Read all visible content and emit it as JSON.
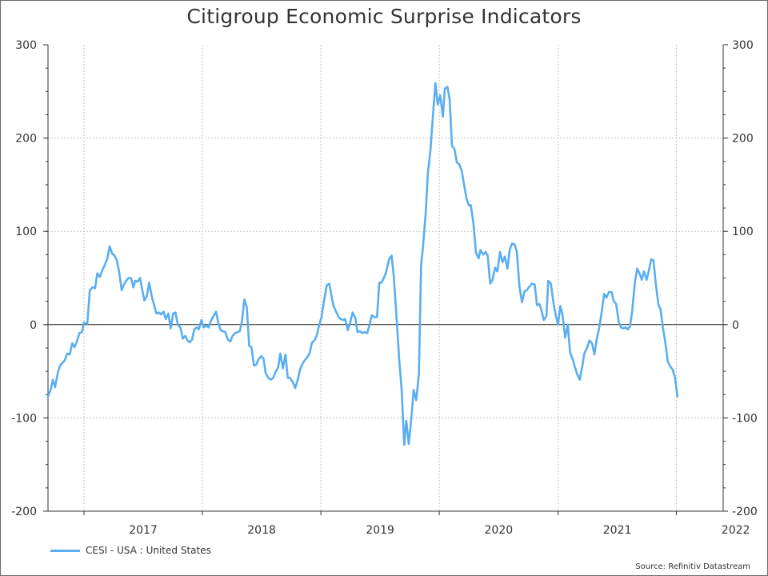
{
  "chart_data": {
    "type": "line",
    "title": "Citigroup Economic Surprise Indicators",
    "source": "Source: Refinitiv Datastream",
    "ylim": [
      -200,
      300
    ],
    "yticks": [
      -200,
      -100,
      0,
      100,
      200,
      300
    ],
    "xlim": [
      "2016-09-12",
      "2022-05-25"
    ],
    "x_tick_labels": [
      "2017",
      "2018",
      "2019",
      "2020",
      "2021",
      "2022"
    ],
    "grid": true,
    "legend_position": "bottom-left",
    "series": [
      {
        "name": "CESI - USA : United States",
        "color": "#5aaef0",
        "points": [
          [
            "2016-09-12",
            -77
          ],
          [
            "2016-09-20",
            -70
          ],
          [
            "2016-09-27",
            -59
          ],
          [
            "2016-10-04",
            -67
          ],
          [
            "2016-10-12",
            -52
          ],
          [
            "2016-10-19",
            -44
          ],
          [
            "2016-11-03",
            -38
          ],
          [
            "2016-11-10",
            -31
          ],
          [
            "2016-11-18",
            -32
          ],
          [
            "2016-11-26",
            -20
          ],
          [
            "2016-12-03",
            -24
          ],
          [
            "2016-12-10",
            -18
          ],
          [
            "2016-12-18",
            -9
          ],
          [
            "2016-12-26",
            -8
          ],
          [
            "2016-12-31",
            2
          ],
          [
            "2017-01-11",
            1
          ],
          [
            "2017-01-19",
            37
          ],
          [
            "2017-01-27",
            40
          ],
          [
            "2017-02-04",
            39
          ],
          [
            "2017-02-11",
            55
          ],
          [
            "2017-02-19",
            51
          ],
          [
            "2017-02-26",
            58
          ],
          [
            "2017-03-06",
            64
          ],
          [
            "2017-03-14",
            71
          ],
          [
            "2017-03-21",
            84
          ],
          [
            "2017-03-29",
            76
          ],
          [
            "2017-04-05",
            74
          ],
          [
            "2017-04-12",
            69
          ],
          [
            "2017-04-19",
            57
          ],
          [
            "2017-04-27",
            37
          ],
          [
            "2017-05-04",
            43
          ],
          [
            "2017-05-11",
            47
          ],
          [
            "2017-05-18",
            50
          ],
          [
            "2017-05-26",
            50
          ],
          [
            "2017-06-02",
            40
          ],
          [
            "2017-06-08",
            47
          ],
          [
            "2017-06-15",
            46
          ],
          [
            "2017-06-23",
            50
          ],
          [
            "2017-06-29",
            38
          ],
          [
            "2017-07-06",
            26
          ],
          [
            "2017-07-14",
            31
          ],
          [
            "2017-07-21",
            45
          ],
          [
            "2017-07-29",
            30
          ],
          [
            "2017-08-06",
            20
          ],
          [
            "2017-08-12",
            12
          ],
          [
            "2017-08-20",
            13
          ],
          [
            "2017-08-27",
            11
          ],
          [
            "2017-09-03",
            14
          ],
          [
            "2017-09-10",
            6
          ],
          [
            "2017-09-18",
            12
          ],
          [
            "2017-09-25",
            -4
          ],
          [
            "2017-10-03",
            12
          ],
          [
            "2017-10-10",
            13
          ],
          [
            "2017-10-17",
            0
          ],
          [
            "2017-10-25",
            -3
          ],
          [
            "2017-11-02",
            -15
          ],
          [
            "2017-11-09",
            -12
          ],
          [
            "2017-11-16",
            -17
          ],
          [
            "2017-11-23",
            -19
          ],
          [
            "2017-11-30",
            -16
          ],
          [
            "2017-12-07",
            -5
          ],
          [
            "2017-12-14",
            -3
          ],
          [
            "2017-12-21",
            -5
          ],
          [
            "2017-12-29",
            5
          ],
          [
            "2018-01-05",
            -3
          ],
          [
            "2018-01-12",
            -1
          ],
          [
            "2018-01-20",
            -3
          ],
          [
            "2018-01-27",
            4
          ],
          [
            "2018-02-04",
            9
          ],
          [
            "2018-02-12",
            14
          ],
          [
            "2018-02-19",
            2
          ],
          [
            "2018-02-26",
            -6
          ],
          [
            "2018-03-05",
            -7
          ],
          [
            "2018-03-13",
            -8
          ],
          [
            "2018-03-20",
            -16
          ],
          [
            "2018-03-28",
            -18
          ],
          [
            "2018-04-04",
            -12
          ],
          [
            "2018-04-12",
            -9
          ],
          [
            "2018-04-26",
            -7
          ],
          [
            "2018-05-03",
            4
          ],
          [
            "2018-05-10",
            27
          ],
          [
            "2018-05-18",
            18
          ],
          [
            "2018-05-25",
            -23
          ],
          [
            "2018-06-01",
            -24
          ],
          [
            "2018-06-09",
            -44
          ],
          [
            "2018-06-16",
            -43
          ],
          [
            "2018-06-23",
            -37
          ],
          [
            "2018-07-01",
            -34
          ],
          [
            "2018-07-08",
            -36
          ],
          [
            "2018-07-15",
            -52
          ],
          [
            "2018-07-23",
            -57
          ],
          [
            "2018-08-01",
            -59
          ],
          [
            "2018-08-07",
            -57
          ],
          [
            "2018-08-14",
            -51
          ],
          [
            "2018-08-22",
            -46
          ],
          [
            "2018-08-29",
            -31
          ],
          [
            "2018-09-06",
            -47
          ],
          [
            "2018-09-14",
            -32
          ],
          [
            "2018-09-21",
            -57
          ],
          [
            "2018-09-28",
            -57
          ],
          [
            "2018-10-07",
            -62
          ],
          [
            "2018-10-14",
            -68
          ],
          [
            "2018-10-21",
            -60
          ],
          [
            "2018-10-29",
            -48
          ],
          [
            "2018-11-05",
            -42
          ],
          [
            "2018-11-13",
            -38
          ],
          [
            "2018-11-20",
            -35
          ],
          [
            "2018-11-27",
            -31
          ],
          [
            "2018-12-05",
            -19
          ],
          [
            "2018-12-12",
            -17
          ],
          [
            "2018-12-19",
            -12
          ],
          [
            "2018-12-27",
            0
          ],
          [
            "2019-01-03",
            8
          ],
          [
            "2019-01-10",
            24
          ],
          [
            "2019-01-19",
            42
          ],
          [
            "2019-01-27",
            44
          ],
          [
            "2019-02-02",
            32
          ],
          [
            "2019-02-09",
            20
          ],
          [
            "2019-02-17",
            14
          ],
          [
            "2019-02-25",
            8
          ],
          [
            "2019-03-03",
            6
          ],
          [
            "2019-03-10",
            5
          ],
          [
            "2019-03-17",
            6
          ],
          [
            "2019-03-25",
            -6
          ],
          [
            "2019-04-01",
            2
          ],
          [
            "2019-04-09",
            13
          ],
          [
            "2019-04-17",
            7
          ],
          [
            "2019-04-24",
            -8
          ],
          [
            "2019-05-01",
            -7
          ],
          [
            "2019-05-09",
            -9
          ],
          [
            "2019-05-16",
            -8
          ],
          [
            "2019-05-24",
            -9
          ],
          [
            "2019-06-01",
            1
          ],
          [
            "2019-06-07",
            10
          ],
          [
            "2019-06-15",
            8
          ],
          [
            "2019-06-23",
            8
          ],
          [
            "2019-06-30",
            45
          ],
          [
            "2019-07-07",
            45
          ],
          [
            "2019-07-14",
            50
          ],
          [
            "2019-07-21",
            56
          ],
          [
            "2019-07-30",
            70
          ],
          [
            "2019-08-07",
            74
          ],
          [
            "2019-08-14",
            51
          ],
          [
            "2019-08-22",
            9
          ],
          [
            "2019-08-31",
            -40
          ],
          [
            "2019-09-07",
            -70
          ],
          [
            "2019-09-15",
            -129
          ],
          [
            "2019-09-21",
            -103
          ],
          [
            "2019-09-29",
            -128
          ],
          [
            "2019-10-07",
            -100
          ],
          [
            "2019-10-14",
            -70
          ],
          [
            "2019-10-22",
            -81
          ],
          [
            "2019-10-30",
            -53
          ],
          [
            "2019-11-06",
            64
          ],
          [
            "2019-11-12",
            84
          ],
          [
            "2019-11-20",
            119
          ],
          [
            "2019-11-27",
            163
          ],
          [
            "2019-12-05",
            188
          ],
          [
            "2019-12-12",
            222
          ],
          [
            "2019-12-20",
            259
          ],
          [
            "2019-12-27",
            236
          ],
          [
            "2020-01-04",
            246
          ],
          [
            "2020-01-12",
            223
          ],
          [
            "2020-01-18",
            253
          ],
          [
            "2020-01-26",
            255
          ],
          [
            "2020-02-02",
            241
          ],
          [
            "2020-02-09",
            192
          ],
          [
            "2020-02-17",
            188
          ],
          [
            "2020-02-24",
            174
          ],
          [
            "2020-03-02",
            172
          ],
          [
            "2020-03-10",
            165
          ],
          [
            "2020-03-17",
            151
          ],
          [
            "2020-03-25",
            135
          ],
          [
            "2020-04-01",
            128
          ],
          [
            "2020-04-07",
            128
          ],
          [
            "2020-04-15",
            109
          ],
          [
            "2020-04-23",
            77
          ],
          [
            "2020-05-01",
            71
          ],
          [
            "2020-05-07",
            80
          ],
          [
            "2020-05-15",
            75
          ],
          [
            "2020-05-23",
            78
          ],
          [
            "2020-05-29",
            74
          ],
          [
            "2020-06-06",
            44
          ],
          [
            "2020-06-13",
            48
          ],
          [
            "2020-06-21",
            61
          ],
          [
            "2020-06-28",
            57
          ],
          [
            "2020-07-06",
            78
          ],
          [
            "2020-07-14",
            67
          ],
          [
            "2020-07-21",
            73
          ],
          [
            "2020-07-29",
            60
          ],
          [
            "2020-08-05",
            80
          ],
          [
            "2020-08-12",
            87
          ],
          [
            "2020-08-20",
            86
          ],
          [
            "2020-08-27",
            78
          ],
          [
            "2020-09-04",
            41
          ],
          [
            "2020-09-12",
            24
          ],
          [
            "2020-09-20",
            36
          ],
          [
            "2020-09-27",
            37
          ],
          [
            "2020-10-05",
            41
          ],
          [
            "2020-10-12",
            44
          ],
          [
            "2020-10-21",
            43
          ],
          [
            "2020-10-28",
            21
          ],
          [
            "2020-11-05",
            22
          ],
          [
            "2020-11-11",
            15
          ],
          [
            "2020-11-18",
            5
          ],
          [
            "2020-11-26",
            9
          ],
          [
            "2020-12-02",
            47
          ],
          [
            "2020-12-10",
            44
          ],
          [
            "2020-12-18",
            23
          ],
          [
            "2020-12-25",
            10
          ],
          [
            "2021-01-01",
            0
          ],
          [
            "2021-01-08",
            20
          ],
          [
            "2021-01-15",
            10
          ],
          [
            "2021-01-23",
            -14
          ],
          [
            "2021-01-31",
            0
          ],
          [
            "2021-02-07",
            -30
          ],
          [
            "2021-02-15",
            -37
          ],
          [
            "2021-02-23",
            -47
          ],
          [
            "2021-03-01",
            -53
          ],
          [
            "2021-03-09",
            -59
          ],
          [
            "2021-03-16",
            -46
          ],
          [
            "2021-03-23",
            -31
          ],
          [
            "2021-03-31",
            -25
          ],
          [
            "2021-04-08",
            -17
          ],
          [
            "2021-04-16",
            -20
          ],
          [
            "2021-04-23",
            -32
          ],
          [
            "2021-04-30",
            -16
          ],
          [
            "2021-05-07",
            -5
          ],
          [
            "2021-05-15",
            12
          ],
          [
            "2021-05-23",
            33
          ],
          [
            "2021-05-30",
            29
          ],
          [
            "2021-06-07",
            35
          ],
          [
            "2021-06-15",
            35
          ],
          [
            "2021-06-22",
            25
          ],
          [
            "2021-06-29",
            22
          ],
          [
            "2021-07-07",
            3
          ],
          [
            "2021-07-14",
            -3
          ],
          [
            "2021-07-21",
            -4
          ],
          [
            "2021-07-28",
            -3
          ],
          [
            "2021-08-04",
            -5
          ],
          [
            "2021-08-11",
            -2
          ],
          [
            "2021-08-18",
            16
          ],
          [
            "2021-08-26",
            46
          ],
          [
            "2021-09-02",
            60
          ],
          [
            "2021-09-09",
            55
          ],
          [
            "2021-09-16",
            48
          ],
          [
            "2021-09-23",
            57
          ],
          [
            "2021-10-01",
            48
          ],
          [
            "2021-10-08",
            58
          ],
          [
            "2021-10-15",
            70
          ],
          [
            "2021-10-22",
            69
          ],
          [
            "2021-10-30",
            42
          ],
          [
            "2021-11-06",
            22
          ],
          [
            "2021-11-13",
            16
          ],
          [
            "2021-11-20",
            -3
          ],
          [
            "2021-11-28",
            -20
          ],
          [
            "2021-12-05",
            -39
          ],
          [
            "2021-12-13",
            -45
          ],
          [
            "2021-12-20",
            -48
          ],
          [
            "2021-12-27",
            -56
          ],
          [
            "2022-01-04",
            -77
          ]
        ]
      }
    ]
  }
}
